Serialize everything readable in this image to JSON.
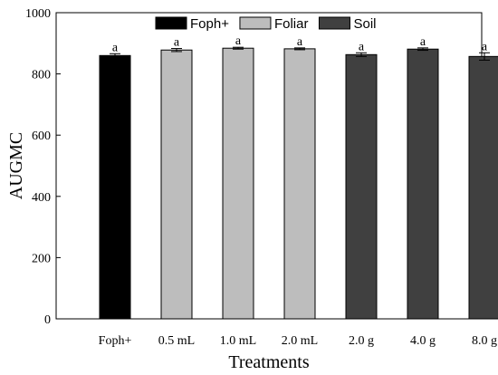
{
  "chart_data": {
    "type": "bar",
    "xlabel": "Treatments",
    "ylabel": "AUGMC",
    "ylim": [
      0,
      1000
    ],
    "yticks": [
      0,
      200,
      400,
      600,
      800,
      1000
    ],
    "grid": false,
    "legend_position": "top-center",
    "categories": [
      "Foph+",
      "0.5 mL",
      "1.0 mL",
      "2.0 mL",
      "2.0 g",
      "4.0 g",
      "8.0 g"
    ],
    "values": [
      860,
      878,
      884,
      882,
      863,
      881,
      857
    ],
    "errors": [
      6,
      5,
      3,
      3,
      6,
      4,
      12
    ],
    "labels": [
      "a",
      "a",
      "a",
      "a",
      "a",
      "a",
      "a"
    ],
    "groups": [
      "Foph+",
      "Foliar",
      "Foliar",
      "Foliar",
      "Soil",
      "Soil",
      "Soil"
    ],
    "legend": [
      {
        "name": "Foph+",
        "color": "#000000"
      },
      {
        "name": "Foliar",
        "color": "#bdbdbd"
      },
      {
        "name": "Soil",
        "color": "#404040"
      }
    ]
  }
}
